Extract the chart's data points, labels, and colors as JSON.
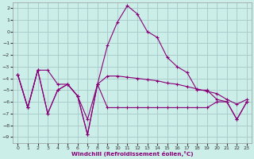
{
  "background_color": "#cceee8",
  "grid_color": "#aacccc",
  "line_color": "#880077",
  "xlabel": "Windchill (Refroidissement éolien,°C)",
  "xlim": [
    -0.5,
    23.5
  ],
  "ylim": [
    -9.5,
    2.5
  ],
  "xticks": [
    0,
    1,
    2,
    3,
    4,
    5,
    6,
    7,
    8,
    9,
    10,
    11,
    12,
    13,
    14,
    15,
    16,
    17,
    18,
    19,
    20,
    21,
    22,
    23
  ],
  "yticks": [
    -9,
    -8,
    -7,
    -6,
    -5,
    -4,
    -3,
    -2,
    -1,
    0,
    1,
    2
  ],
  "s1_x": [
    0,
    1,
    2,
    3,
    4,
    5,
    6,
    7,
    8,
    9,
    10,
    11,
    12,
    13,
    14,
    15,
    16,
    17,
    18,
    19,
    20,
    21,
    22,
    23
  ],
  "s1_y": [
    -3.7,
    -6.5,
    -3.3,
    -3.3,
    -4.5,
    -4.5,
    -5.5,
    -7.5,
    -4.5,
    -1.2,
    0.8,
    2.2,
    1.5,
    0.0,
    -0.5,
    -2.2,
    -3.0,
    -3.5,
    -5.0,
    -5.0,
    -5.8,
    -6.0,
    -7.5,
    -6.0
  ],
  "s2_x": [
    0,
    1,
    2,
    3,
    4,
    5,
    6,
    7,
    8,
    9,
    10,
    11,
    12,
    13,
    14,
    15,
    16,
    17,
    18,
    19,
    20,
    21,
    22,
    23
  ],
  "s2_y": [
    -3.7,
    -6.5,
    -3.3,
    -7.0,
    -5.0,
    -4.5,
    -5.5,
    -8.8,
    -4.5,
    -3.8,
    -3.8,
    -3.9,
    -4.0,
    -4.1,
    -4.2,
    -4.4,
    -4.5,
    -4.7,
    -4.9,
    -5.1,
    -5.3,
    -5.8,
    -6.2,
    -5.8
  ],
  "s3_x": [
    0,
    1,
    2,
    3,
    4,
    5,
    6,
    7,
    8,
    9,
    10,
    11,
    12,
    13,
    14,
    15,
    16,
    17,
    18,
    19,
    20,
    21,
    22,
    23
  ],
  "s3_y": [
    -3.7,
    -6.5,
    -3.3,
    -7.0,
    -5.0,
    -4.5,
    -5.5,
    -8.8,
    -4.5,
    -6.5,
    -6.5,
    -6.5,
    -6.5,
    -6.5,
    -6.5,
    -6.5,
    -6.5,
    -6.5,
    -6.5,
    -6.5,
    -6.0,
    -6.0,
    -7.5,
    -6.0
  ]
}
